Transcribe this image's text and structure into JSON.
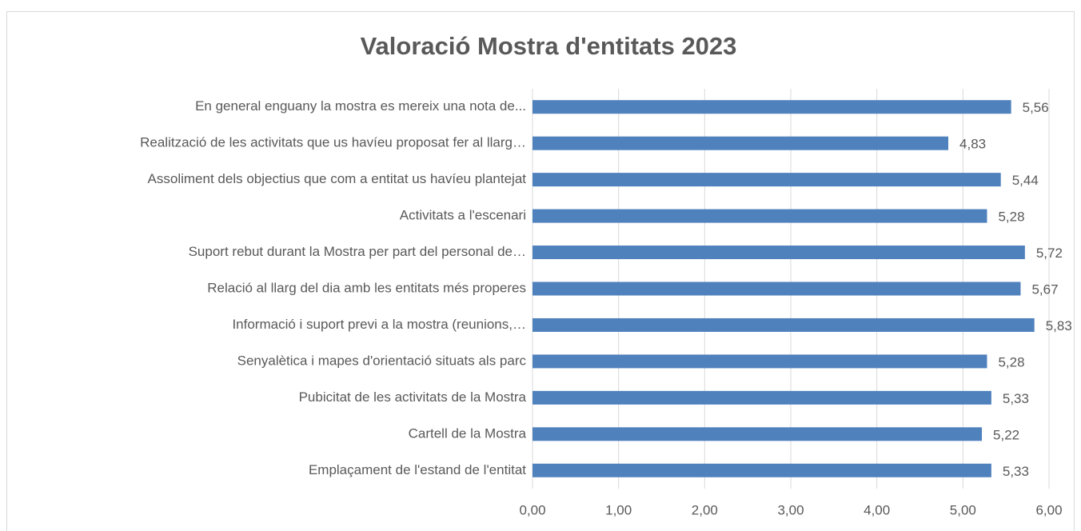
{
  "chart_data": {
    "type": "barh",
    "title": "Valoració Mostra d'entitats 2023",
    "categories": [
      "En general enguany la mostra es mereix una nota de...",
      "Realització de les activitats que us havíeu proposat fer al llarg…",
      "Assoliment dels objectius que com a entitat us havíeu plantejat",
      "Activitats a l'escenari",
      "Suport rebut durant la Mostra per part del personal de…",
      "Relació al llarg del dia amb les entitats més properes",
      "Informació i suport previ a la mostra (reunions,…",
      "Senyalètica i mapes d'orientació situats als parc",
      "Pubicitat de les activitats de la Mostra",
      "Cartell de la Mostra",
      "Emplaçament de l'estand de l'entitat"
    ],
    "values": [
      5.56,
      4.83,
      5.44,
      5.28,
      5.72,
      5.67,
      5.83,
      5.28,
      5.33,
      5.22,
      5.33
    ],
    "value_labels": [
      "5,56",
      "4,83",
      "5,44",
      "5,28",
      "5,72",
      "5,67",
      "5,83",
      "5,28",
      "5,33",
      "5,22",
      "5,33"
    ],
    "color": "#4f81bd",
    "xlim": [
      0,
      6
    ],
    "xticks": [
      {
        "value": 0,
        "label": "0,00"
      },
      {
        "value": 1,
        "label": "1,00"
      },
      {
        "value": 2,
        "label": "2,00"
      },
      {
        "value": 3,
        "label": "3,00"
      },
      {
        "value": 4,
        "label": "4,00"
      },
      {
        "value": 5,
        "label": "5,00"
      },
      {
        "value": 6,
        "label": "6,00"
      }
    ],
    "grid": true
  }
}
